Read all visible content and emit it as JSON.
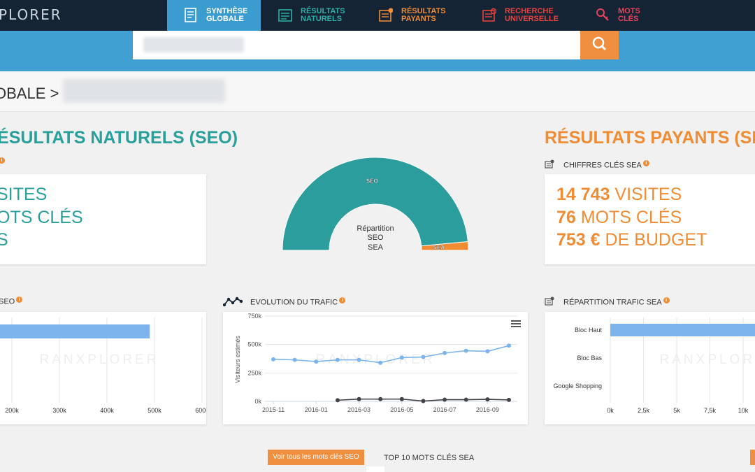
{
  "header": {
    "logo": "PLORER",
    "tabs": [
      {
        "line1": "SYNTHÈSE",
        "line2": "GLOBALE"
      },
      {
        "line1": "RÉSULTATS",
        "line2": "NATURELS"
      },
      {
        "line1": "RÉSULTATS",
        "line2": "PAYANTS"
      },
      {
        "line1": "RECHERCHE",
        "line2": "UNIVERSELLE"
      },
      {
        "line1": "MOTS",
        "line2": "CLÉS"
      }
    ]
  },
  "breadcrumb": {
    "text": "OBALE >"
  },
  "seo": {
    "heading": "NATURELS (SEO)",
    "kpi1": "SITES",
    "kpi2": "OTS CLÉS",
    "kpi3": "S",
    "traffic_label": "SEO",
    "chart_data": {
      "type": "bar",
      "categories": [
        ""
      ],
      "values": [
        490000
      ],
      "xticks": [
        "200k",
        "300k",
        "400k",
        "500k",
        "600k"
      ],
      "watermark": "RANXPLORER"
    }
  },
  "donut": {
    "title": "Répartition",
    "legend_seo": "SEO",
    "legend_sea": "SEA",
    "chart_data": {
      "type": "pie",
      "labels": [
        "SEO",
        "SEA"
      ],
      "values": [
        97,
        3
      ],
      "colors": [
        "#2a9d9c",
        "#f08c34"
      ]
    }
  },
  "sea": {
    "heading": "RÉSULTATS PAYANTS (SE",
    "subheading": "CHIFFRES CLÉS SEA",
    "visits_num": "14 743",
    "visits_label": "VISITES",
    "keywords_num": "76",
    "keywords_label": "MOTS CLÉS",
    "budget_num": "753 €",
    "budget_label": "DE BUDGET"
  },
  "traffic": {
    "title": "EVOLUTION DU TRAFIC",
    "watermark": "RANXPLORER",
    "chart_data": {
      "type": "line",
      "ylabel": "Visiteurs estimés",
      "yticks": [
        "0k",
        "250k",
        "500k",
        "750k"
      ],
      "ylim": [
        0,
        750000
      ],
      "xticks": [
        "2015-11",
        "2016-01",
        "2016-03",
        "2016-05",
        "2016-07",
        "2016-09"
      ],
      "series": [
        {
          "values": [
            370000,
            365000,
            350000,
            365000,
            365000,
            340000,
            385000,
            390000,
            425000,
            445000,
            440000,
            490000
          ],
          "color": "#7cb5ec"
        },
        {
          "values": [
            null,
            null,
            null,
            10000,
            20000,
            20000,
            20000,
            3000,
            15000,
            15000,
            18000,
            13000
          ],
          "color": "#434348"
        }
      ]
    }
  },
  "sea_traffic": {
    "title": "RÉPARTITION TRAFIC SEA",
    "watermark": "RANXPLORER",
    "chart_data": {
      "type": "bar",
      "categories": [
        "Bloc Haut",
        "Bloc Bas",
        "Google Shopping"
      ],
      "values": [
        14743,
        0,
        0
      ],
      "xticks": [
        "0k",
        "2,5k",
        "5k",
        "7,5k",
        "10k"
      ]
    }
  },
  "footer": {
    "seo_button": "Voir tous les mots clés SEO",
    "top10_label": "TOP 10 MOTS CLÉS SEA"
  },
  "colors": {
    "teal": "#2a9d9c",
    "orange": "#f08c34",
    "blue": "#41a0d2",
    "navy": "#152434"
  }
}
